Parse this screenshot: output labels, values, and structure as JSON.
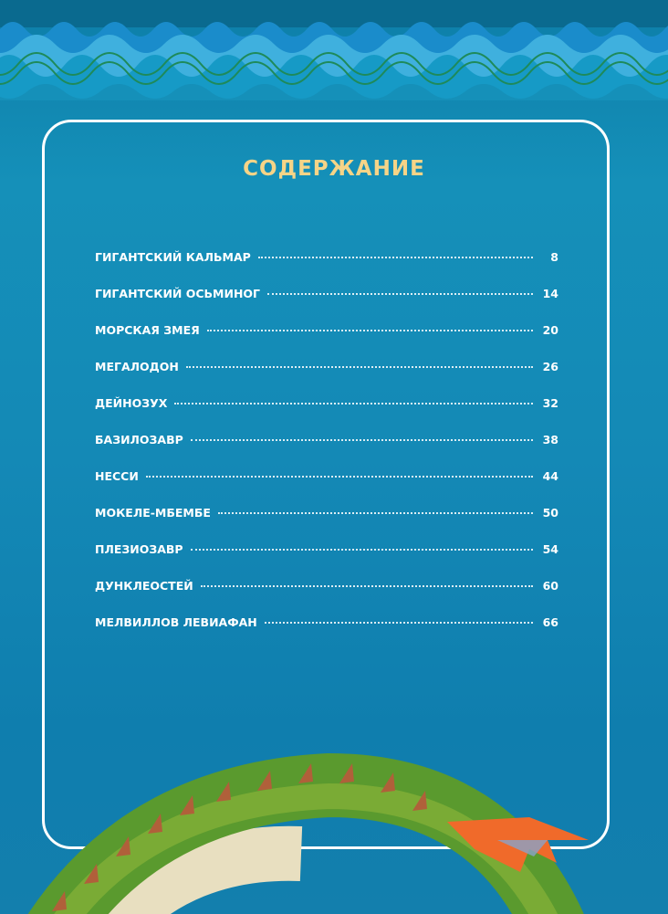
{
  "title": "СОДЕРЖАНИЕ",
  "entries": [
    {
      "label": "ГИГАНТСКИЙ КАЛЬМАР",
      "page": "8"
    },
    {
      "label": "ГИГАНТСКИЙ ОСЬМИНОГ",
      "page": "14"
    },
    {
      "label": "МОРСКАЯ ЗМЕЯ",
      "page": "20"
    },
    {
      "label": "МЕГАЛОДОН",
      "page": "26"
    },
    {
      "label": "ДЕЙНОЗУХ",
      "page": "32"
    },
    {
      "label": "БАЗИЛОЗАВР",
      "page": "38"
    },
    {
      "label": "НЕССИ",
      "page": "44"
    },
    {
      "label": "МОКЕЛЕ-МБЕМБЕ",
      "page": "50"
    },
    {
      "label": "ПЛЕЗИОЗАВР",
      "page": "54"
    },
    {
      "label": "ДУНКЛЕОСТЕЙ",
      "page": "60"
    },
    {
      "label": "МЕЛВИЛЛОВ ЛЕВИАФАН",
      "page": "66"
    }
  ],
  "colors": {
    "title": "#f6d487",
    "ocean": "#1489b6",
    "serpent": "#5a9a2e",
    "fin": "#f06a2a"
  }
}
